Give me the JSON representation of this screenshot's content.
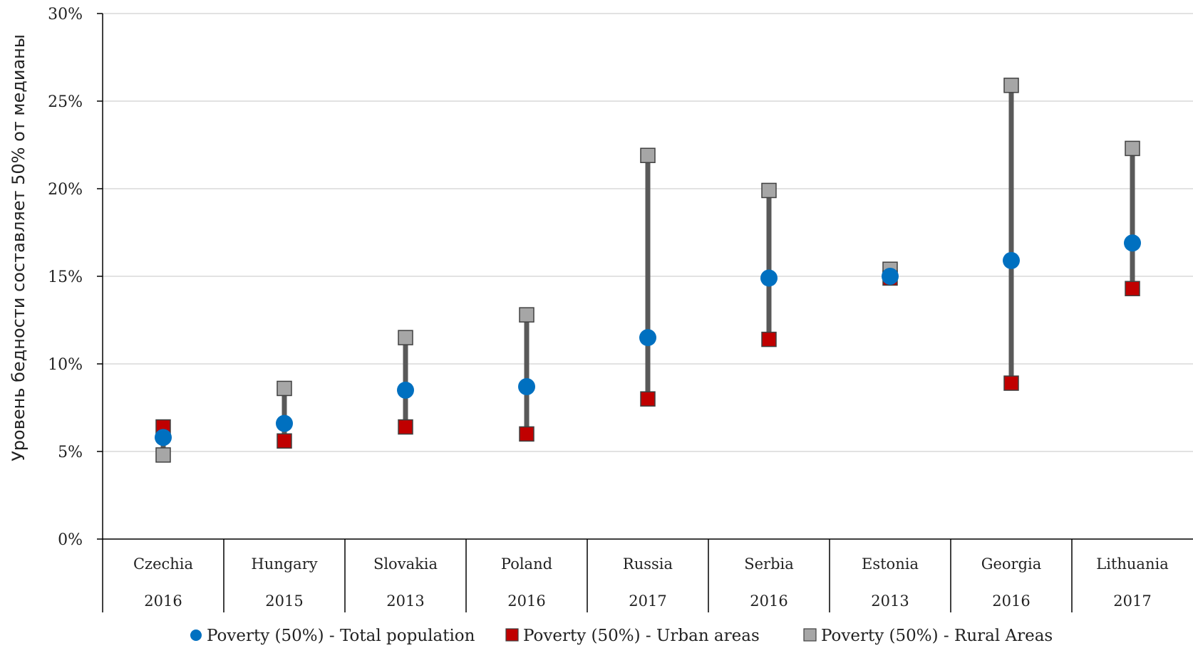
{
  "colors": {
    "total": "#0070C0",
    "urban": "#C00000",
    "rural": "#A6A6A6",
    "range_line": "#595959",
    "grid": "#D9D9D9",
    "axis": "#000000"
  },
  "chart_data": {
    "type": "scatter",
    "title": "",
    "ylabel": "Уровень бедности составляет 50% от медианы",
    "xlabel": "",
    "ylim": [
      0,
      0.3
    ],
    "yticks": [
      {
        "value": 0.0,
        "label": "0%"
      },
      {
        "value": 0.05,
        "label": "5%"
      },
      {
        "value": 0.1,
        "label": "10%"
      },
      {
        "value": 0.15,
        "label": "15%"
      },
      {
        "value": 0.2,
        "label": "20%"
      },
      {
        "value": 0.25,
        "label": "25%"
      },
      {
        "value": 0.3,
        "label": "30%"
      }
    ],
    "grid": true,
    "legend_position": "bottom",
    "categories": [
      {
        "country": "Czechia",
        "year": "2016"
      },
      {
        "country": "Hungary",
        "year": "2015"
      },
      {
        "country": "Slovakia",
        "year": "2013"
      },
      {
        "country": "Poland",
        "year": "2016"
      },
      {
        "country": "Russia",
        "year": "2017"
      },
      {
        "country": "Serbia",
        "year": "2016"
      },
      {
        "country": "Estonia",
        "year": "2013"
      },
      {
        "country": "Georgia",
        "year": "2016"
      },
      {
        "country": "Lithuania",
        "year": "2017"
      }
    ],
    "series": [
      {
        "key": "total",
        "name": "Poverty (50%) - Total population",
        "marker": "circle",
        "values": [
          0.058,
          0.066,
          0.085,
          0.087,
          0.115,
          0.149,
          0.15,
          0.159,
          0.169
        ]
      },
      {
        "key": "urban",
        "name": "Poverty (50%) - Urban areas",
        "marker": "square",
        "values": [
          0.064,
          0.056,
          0.064,
          0.06,
          0.08,
          0.114,
          0.149,
          0.089,
          0.143
        ]
      },
      {
        "key": "rural",
        "name": "Poverty (50%) - Rural Areas",
        "marker": "square",
        "values": [
          0.048,
          0.086,
          0.115,
          0.128,
          0.219,
          0.199,
          0.154,
          0.259,
          0.223
        ]
      }
    ]
  }
}
